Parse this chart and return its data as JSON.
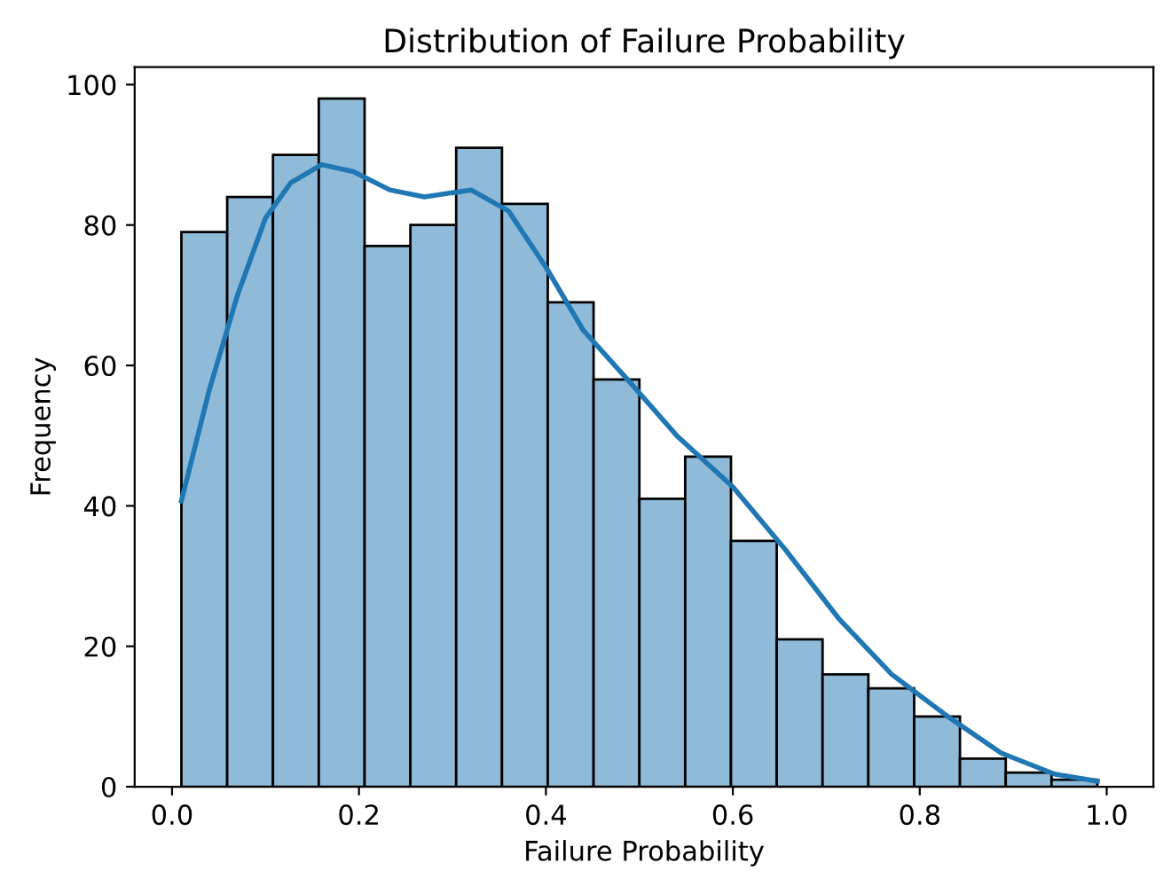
{
  "chart_data": {
    "type": "histogram",
    "title": "Distribution of Failure Probability",
    "xlabel": "Failure Probability",
    "ylabel": "Frequency",
    "bins": [
      0.01,
      0.059,
      0.108,
      0.157,
      0.206,
      0.255,
      0.304,
      0.353,
      0.402,
      0.451,
      0.5,
      0.549,
      0.598,
      0.647,
      0.696,
      0.745,
      0.794,
      0.843,
      0.892,
      0.941,
      0.99
    ],
    "values": [
      79,
      84,
      90,
      98,
      77,
      80,
      91,
      83,
      69,
      58,
      41,
      47,
      35,
      21,
      16,
      14,
      10,
      4,
      2,
      1
    ],
    "color": "#8fbbd9",
    "series": [
      {
        "type": "line",
        "color": "#1f77b4",
        "x": [
          0.01,
          0.04,
          0.07,
          0.1,
          0.127,
          0.16,
          0.194,
          0.233,
          0.27,
          0.32,
          0.36,
          0.4,
          0.44,
          0.49,
          0.54,
          0.6,
          0.656,
          0.713,
          0.77,
          0.83,
          0.887,
          0.944,
          0.99
        ],
        "values": [
          40.7,
          56.6,
          70,
          81,
          86,
          88.6,
          87.6,
          85,
          84,
          85,
          82,
          74,
          65,
          57.6,
          50,
          42.7,
          33.8,
          24,
          16,
          10,
          4.8,
          1.8,
          0.8
        ]
      }
    ],
    "xlim": [
      -0.04,
      1.05
    ],
    "xticks": [
      {
        "value": 0,
        "label": "0.0"
      },
      0.2,
      0.4,
      0.6,
      0.8,
      {
        "value": 1,
        "label": "1.0"
      }
    ],
    "ylim": [
      0,
      102.5
    ],
    "yticks": [
      0,
      20,
      40,
      60,
      80,
      100
    ]
  }
}
